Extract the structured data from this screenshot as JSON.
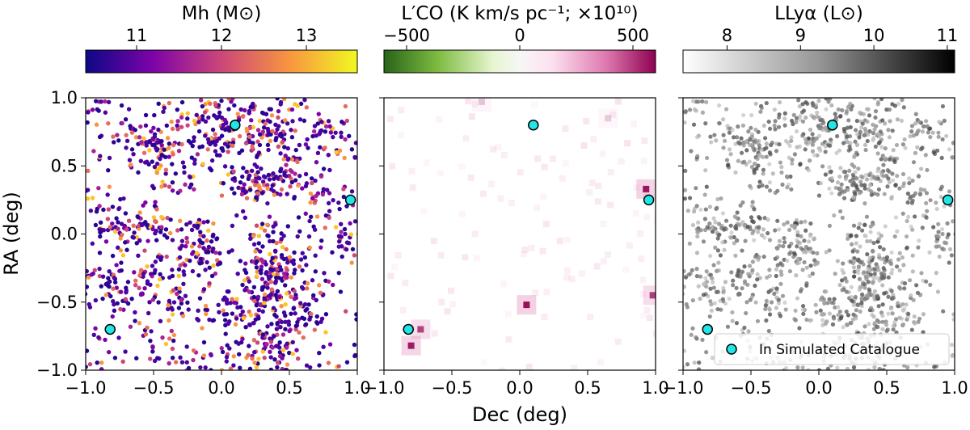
{
  "chart_data": {
    "type": "scatter",
    "xlabel": "Dec (deg)",
    "ylabel": "RA (deg)",
    "xlim": [
      -1.0,
      1.0
    ],
    "ylim": [
      -1.0,
      1.0
    ],
    "x_ticks": [
      "−1.0",
      "−0.5",
      "0.0",
      "0.5",
      "1.0"
    ],
    "y_ticks": [
      "1.0",
      "0.5",
      "0.0",
      "−0.5",
      "−1.0"
    ],
    "x_tick_values": [
      -1.0,
      -0.5,
      0.0,
      0.5,
      1.0
    ],
    "y_tick_values": [
      1.0,
      0.5,
      0.0,
      -0.5,
      -1.0
    ],
    "panels": [
      {
        "name": "halo-mass",
        "colorbar_title": "Mh (M⊙)",
        "colorbar_range": [
          10.4,
          13.6
        ],
        "colorbar_ticks": [
          "11",
          "12",
          "13"
        ],
        "colorbar_tick_values": [
          11,
          12,
          13
        ],
        "colormap": "plasma"
      },
      {
        "name": "co-intensity",
        "colorbar_title": "L′CO (K km/s pc⁻¹; ×10¹⁰)",
        "colorbar_range": [
          -600,
          600
        ],
        "colorbar_ticks": [
          "−500",
          "0",
          "500"
        ],
        "colorbar_tick_values": [
          -500,
          0,
          500
        ],
        "colormap": "PiYG_r"
      },
      {
        "name": "lya-luminosity",
        "colorbar_title": "LLyα (L⊙)",
        "colorbar_range": [
          7.4,
          11.1
        ],
        "colorbar_ticks": [
          "8",
          "9",
          "10",
          "11"
        ],
        "colorbar_tick_values": [
          8,
          9,
          10,
          11
        ],
        "colormap": "Greys"
      }
    ],
    "catalogue_points": {
      "name": "In Simulated Catalogue",
      "color": "#22e6e6",
      "dec": [
        0.1,
        0.95,
        -0.82
      ],
      "ra": [
        0.8,
        0.25,
        -0.7
      ]
    },
    "co_peaks": [
      {
        "dec": 0.05,
        "ra": -0.52,
        "value": 560
      },
      {
        "dec": -0.8,
        "ra": -0.82,
        "value": 520
      },
      {
        "dec": -0.73,
        "ra": -0.7,
        "value": 420
      },
      {
        "dec": 0.93,
        "ra": 0.33,
        "value": 540
      },
      {
        "dec": 0.98,
        "ra": -0.45,
        "value": 430
      },
      {
        "dec": -0.28,
        "ra": 0.97,
        "value": 120
      },
      {
        "dec": 0.65,
        "ra": 0.85,
        "value": 110
      }
    ],
    "legend": {
      "label": "In Simulated Catalogue",
      "location": "lower-right"
    },
    "legend_panel": "lya-luminosity"
  }
}
